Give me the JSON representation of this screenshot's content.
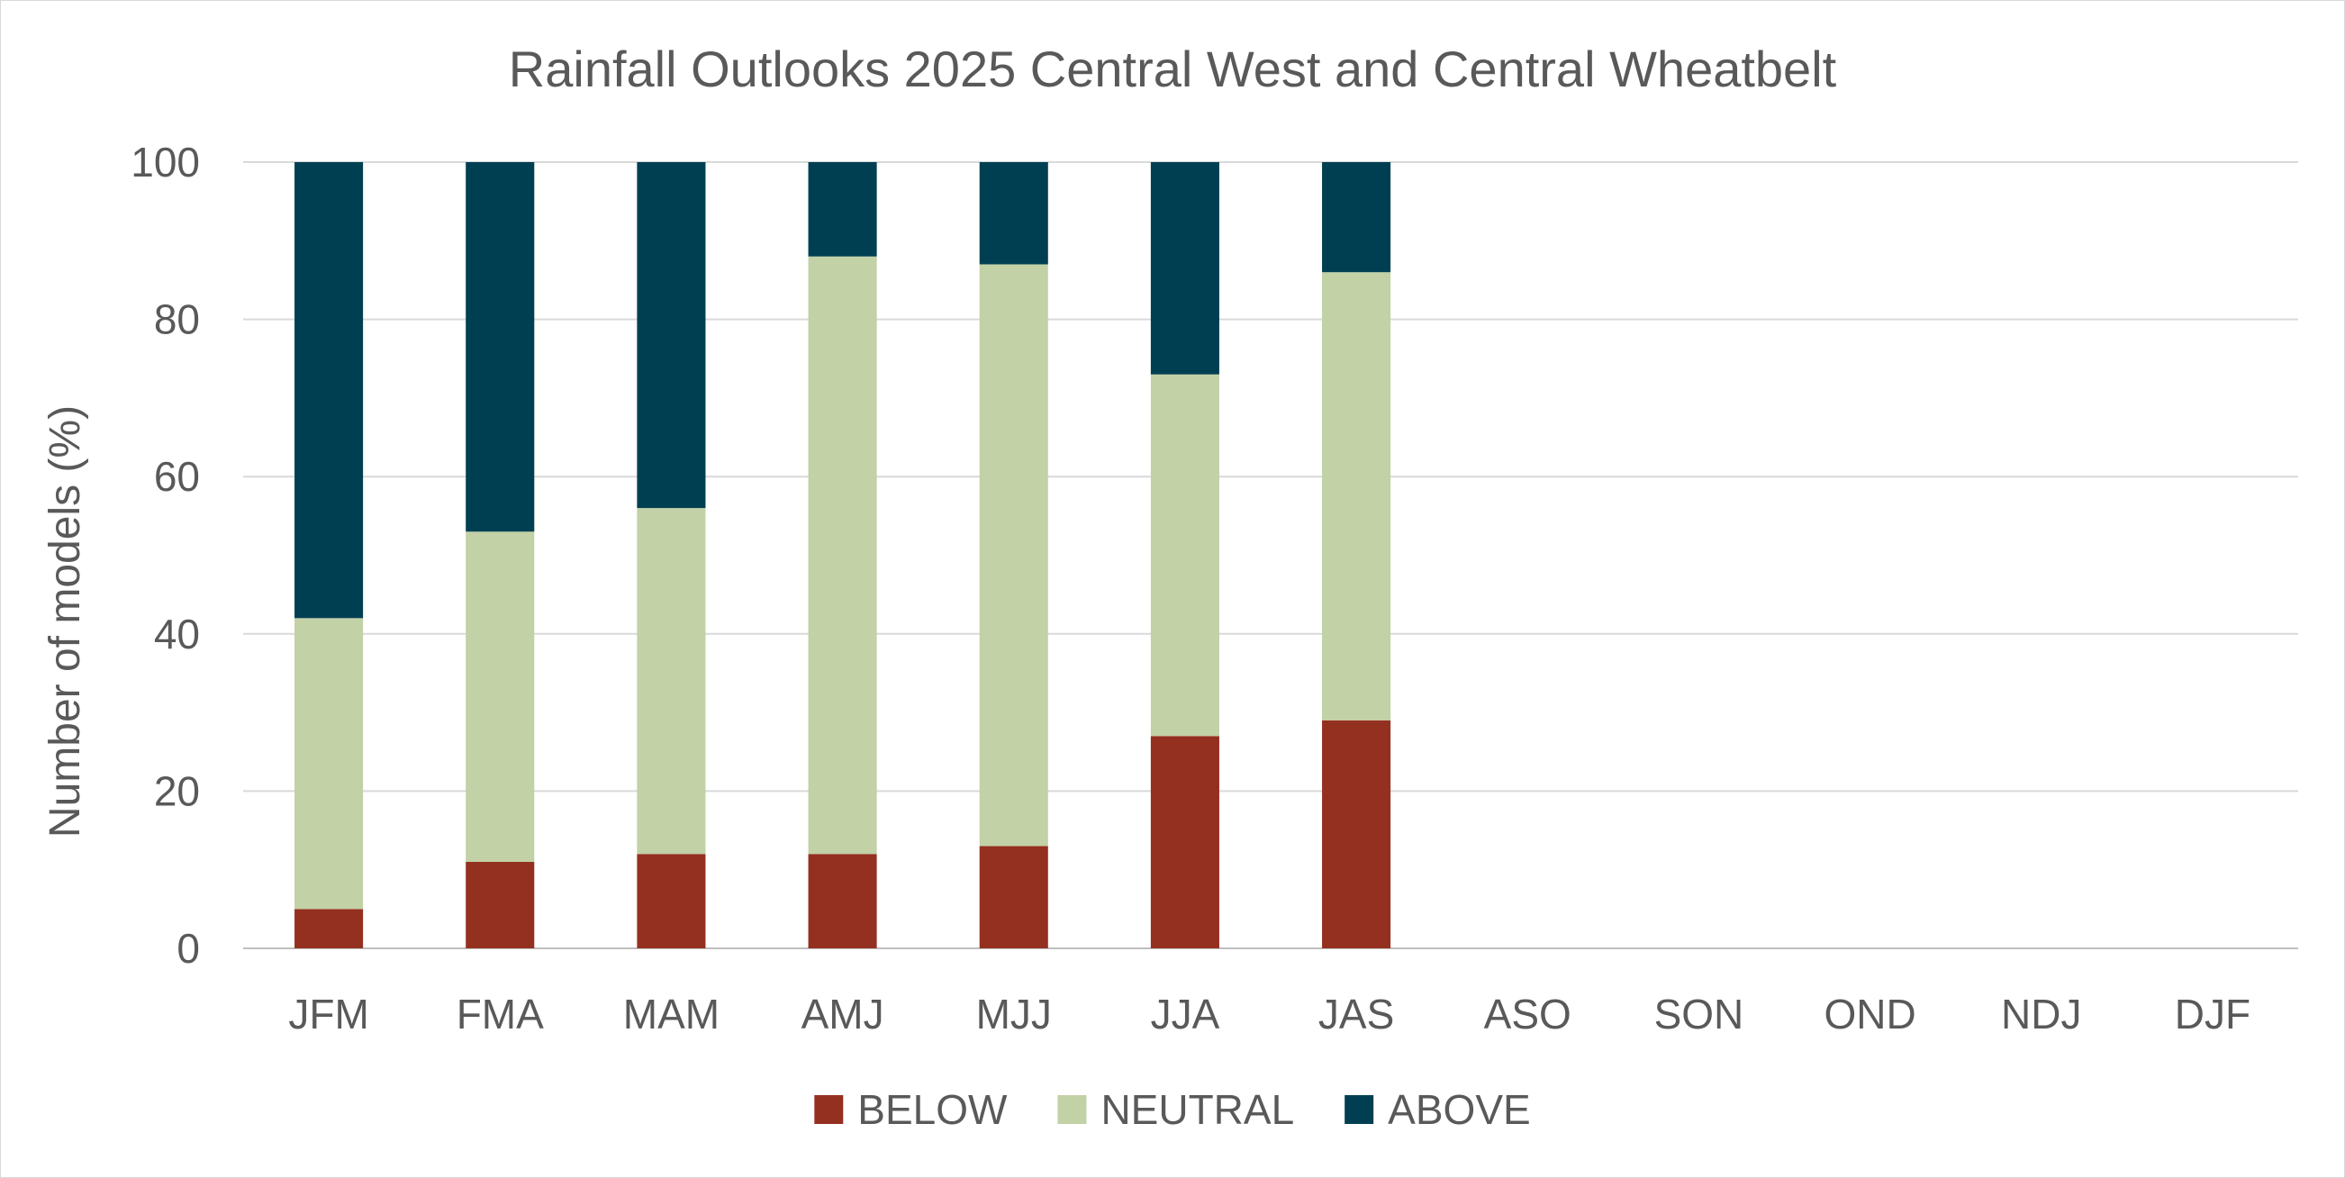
{
  "chart_data": {
    "type": "bar",
    "stacked": true,
    "title": "Rainfall Outlooks 2025 Central West and Central Wheatbelt",
    "xlabel": "",
    "ylabel": "Number of models (%)",
    "ylim": [
      0,
      100
    ],
    "yticks": [
      0,
      20,
      40,
      60,
      80,
      100
    ],
    "grid": true,
    "legend_position": "bottom",
    "categories": [
      "JFM",
      "FMA",
      "MAM",
      "AMJ",
      "MJJ",
      "JJA",
      "JAS",
      "ASO",
      "SON",
      "OND",
      "NDJ",
      "DJF"
    ],
    "series": [
      {
        "name": "BELOW",
        "color": "#943020",
        "values": [
          5,
          11,
          12,
          12,
          13,
          27,
          29,
          null,
          null,
          null,
          null,
          null
        ]
      },
      {
        "name": "NEUTRAL",
        "color": "#c2d1a6",
        "values": [
          37,
          42,
          44,
          76,
          74,
          46,
          57,
          null,
          null,
          null,
          null,
          null
        ]
      },
      {
        "name": "ABOVE",
        "color": "#003f52",
        "values": [
          58,
          47,
          44,
          12,
          13,
          27,
          14,
          null,
          null,
          null,
          null,
          null
        ]
      }
    ]
  }
}
